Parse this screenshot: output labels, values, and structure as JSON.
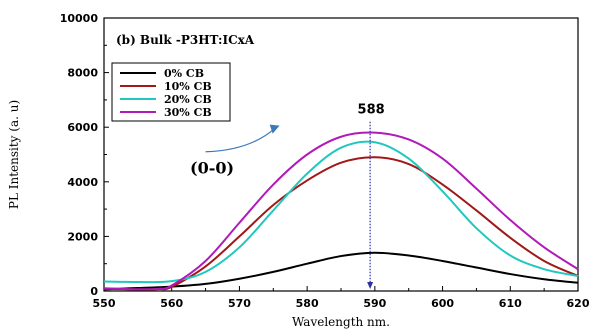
{
  "chart_data": {
    "type": "line",
    "title": "(b) Bulk -P3HT:ICxA",
    "xlabel": "Wavelength nm.",
    "ylabel": "PL Intensity (a. u)",
    "xlim": [
      550,
      620
    ],
    "ylim": [
      0,
      10000
    ],
    "xticks": [
      "550",
      "560",
      "570",
      "580",
      "590",
      "600",
      "610",
      "620"
    ],
    "yticks": [
      "0",
      "2000",
      "4000",
      "6000",
      "8000",
      "10000"
    ],
    "legend_position": "top-left",
    "annotations": {
      "peak": "588",
      "transition": "(0-0)"
    },
    "series": [
      {
        "name": "0% CB",
        "color": "#000000",
        "x": [
          550,
          555,
          560,
          565,
          570,
          575,
          580,
          585,
          590,
          595,
          600,
          605,
          610,
          615,
          620
        ],
        "y": [
          60,
          110,
          160,
          260,
          450,
          700,
          1000,
          1280,
          1400,
          1300,
          1100,
          860,
          620,
          430,
          300
        ]
      },
      {
        "name": "10% CB",
        "color": "#a01818",
        "x": [
          550,
          555,
          558,
          560,
          565,
          570,
          575,
          580,
          585,
          590,
          595,
          600,
          605,
          610,
          615,
          620
        ],
        "y": [
          80,
          60,
          70,
          150,
          900,
          2000,
          3150,
          4050,
          4700,
          4900,
          4650,
          3900,
          2950,
          1950,
          1100,
          550
        ]
      },
      {
        "name": "20% CB",
        "color": "#20c8c0",
        "x": [
          550,
          555,
          560,
          565,
          570,
          575,
          580,
          585,
          590,
          595,
          600,
          605,
          610,
          615,
          620
        ],
        "y": [
          350,
          330,
          360,
          700,
          1600,
          2950,
          4300,
          5250,
          5450,
          4850,
          3650,
          2300,
          1300,
          800,
          550
        ]
      },
      {
        "name": "30% CB",
        "color": "#b01ab8",
        "x": [
          550,
          555,
          558,
          560,
          565,
          570,
          575,
          580,
          585,
          590,
          595,
          600,
          605,
          610,
          615,
          620
        ],
        "y": [
          100,
          60,
          80,
          200,
          1100,
          2500,
          3900,
          5000,
          5650,
          5800,
          5550,
          4850,
          3750,
          2600,
          1600,
          800
        ]
      }
    ]
  }
}
